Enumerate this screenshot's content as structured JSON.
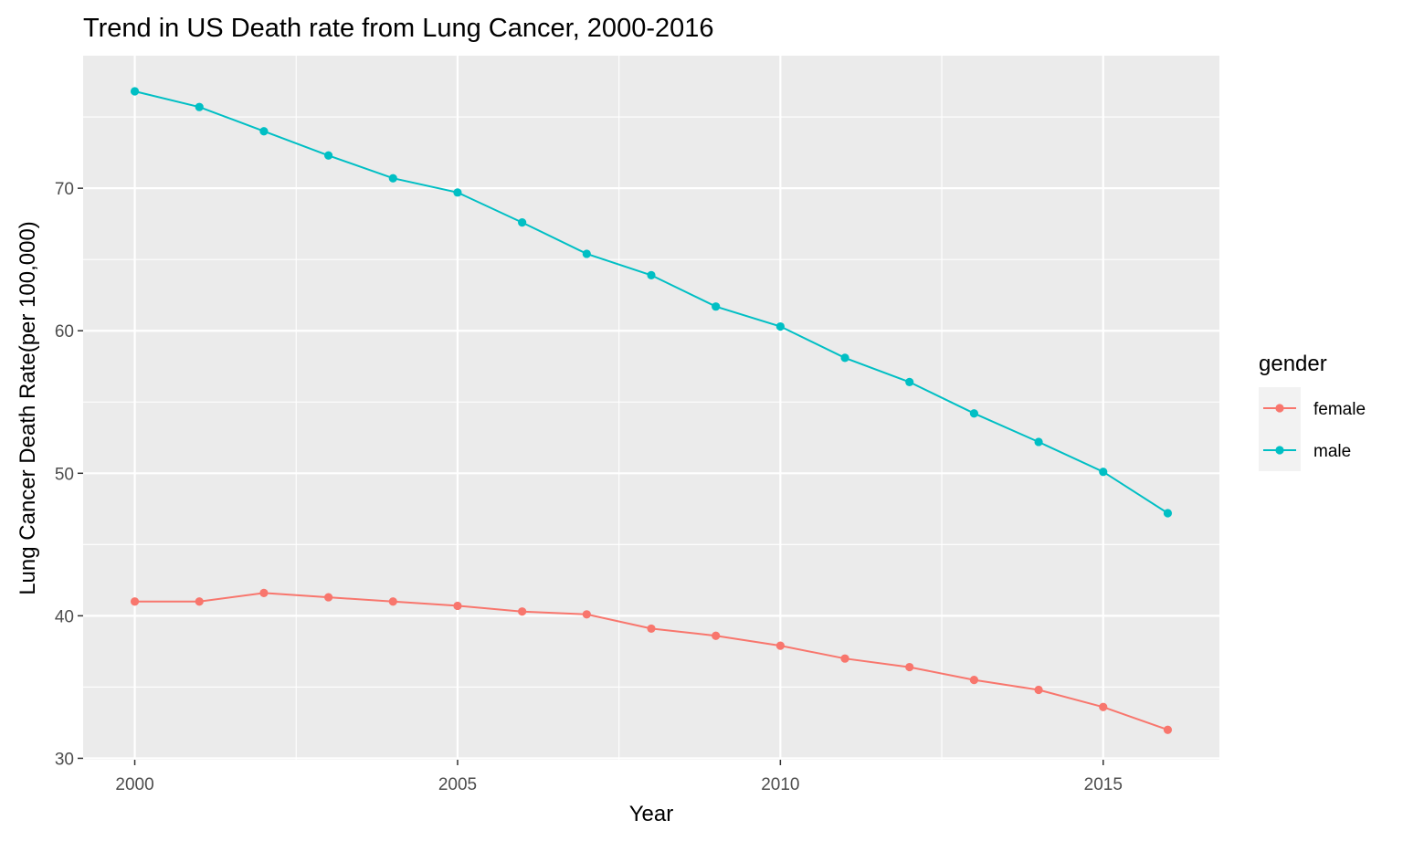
{
  "chart_data": {
    "type": "line",
    "title": "Trend in US Death rate from Lung Cancer, 2000-2016",
    "xlabel": "Year",
    "ylabel": "Lung Cancer Death Rate(per 100,000)",
    "x": [
      2000,
      2001,
      2002,
      2003,
      2004,
      2005,
      2006,
      2007,
      2008,
      2009,
      2010,
      2011,
      2012,
      2013,
      2014,
      2015,
      2016
    ],
    "series": [
      {
        "name": "female",
        "color": "#F8766D",
        "values": [
          41.0,
          41.0,
          41.6,
          41.3,
          41.0,
          40.7,
          40.3,
          40.1,
          39.1,
          38.6,
          37.9,
          37.0,
          36.4,
          35.5,
          34.8,
          33.6,
          32.0
        ]
      },
      {
        "name": "male",
        "color": "#00BFC4",
        "values": [
          76.8,
          75.7,
          74.0,
          72.3,
          70.7,
          69.7,
          67.6,
          65.4,
          63.9,
          61.7,
          60.3,
          58.1,
          56.4,
          54.2,
          52.2,
          50.1,
          47.2
        ]
      }
    ],
    "xlim": [
      1999.2,
      2016.8
    ],
    "ylim": [
      29.9,
      79.3
    ],
    "x_ticks": [
      2000,
      2005,
      2010,
      2015
    ],
    "x_minor_ticks": [
      2002.5,
      2007.5,
      2012.5
    ],
    "y_ticks": [
      30,
      40,
      50,
      60,
      70
    ],
    "y_minor_ticks": [
      35,
      45,
      55,
      65,
      75
    ],
    "x_tick_labels": [
      "2000",
      "2005",
      "2010",
      "2015"
    ],
    "y_tick_labels": [
      "30",
      "40",
      "50",
      "60",
      "70"
    ],
    "legend": {
      "title": "gender",
      "position": "right"
    },
    "grid": true,
    "panel_color": "#EBEBEB",
    "grid_color": "#FFFFFF"
  }
}
